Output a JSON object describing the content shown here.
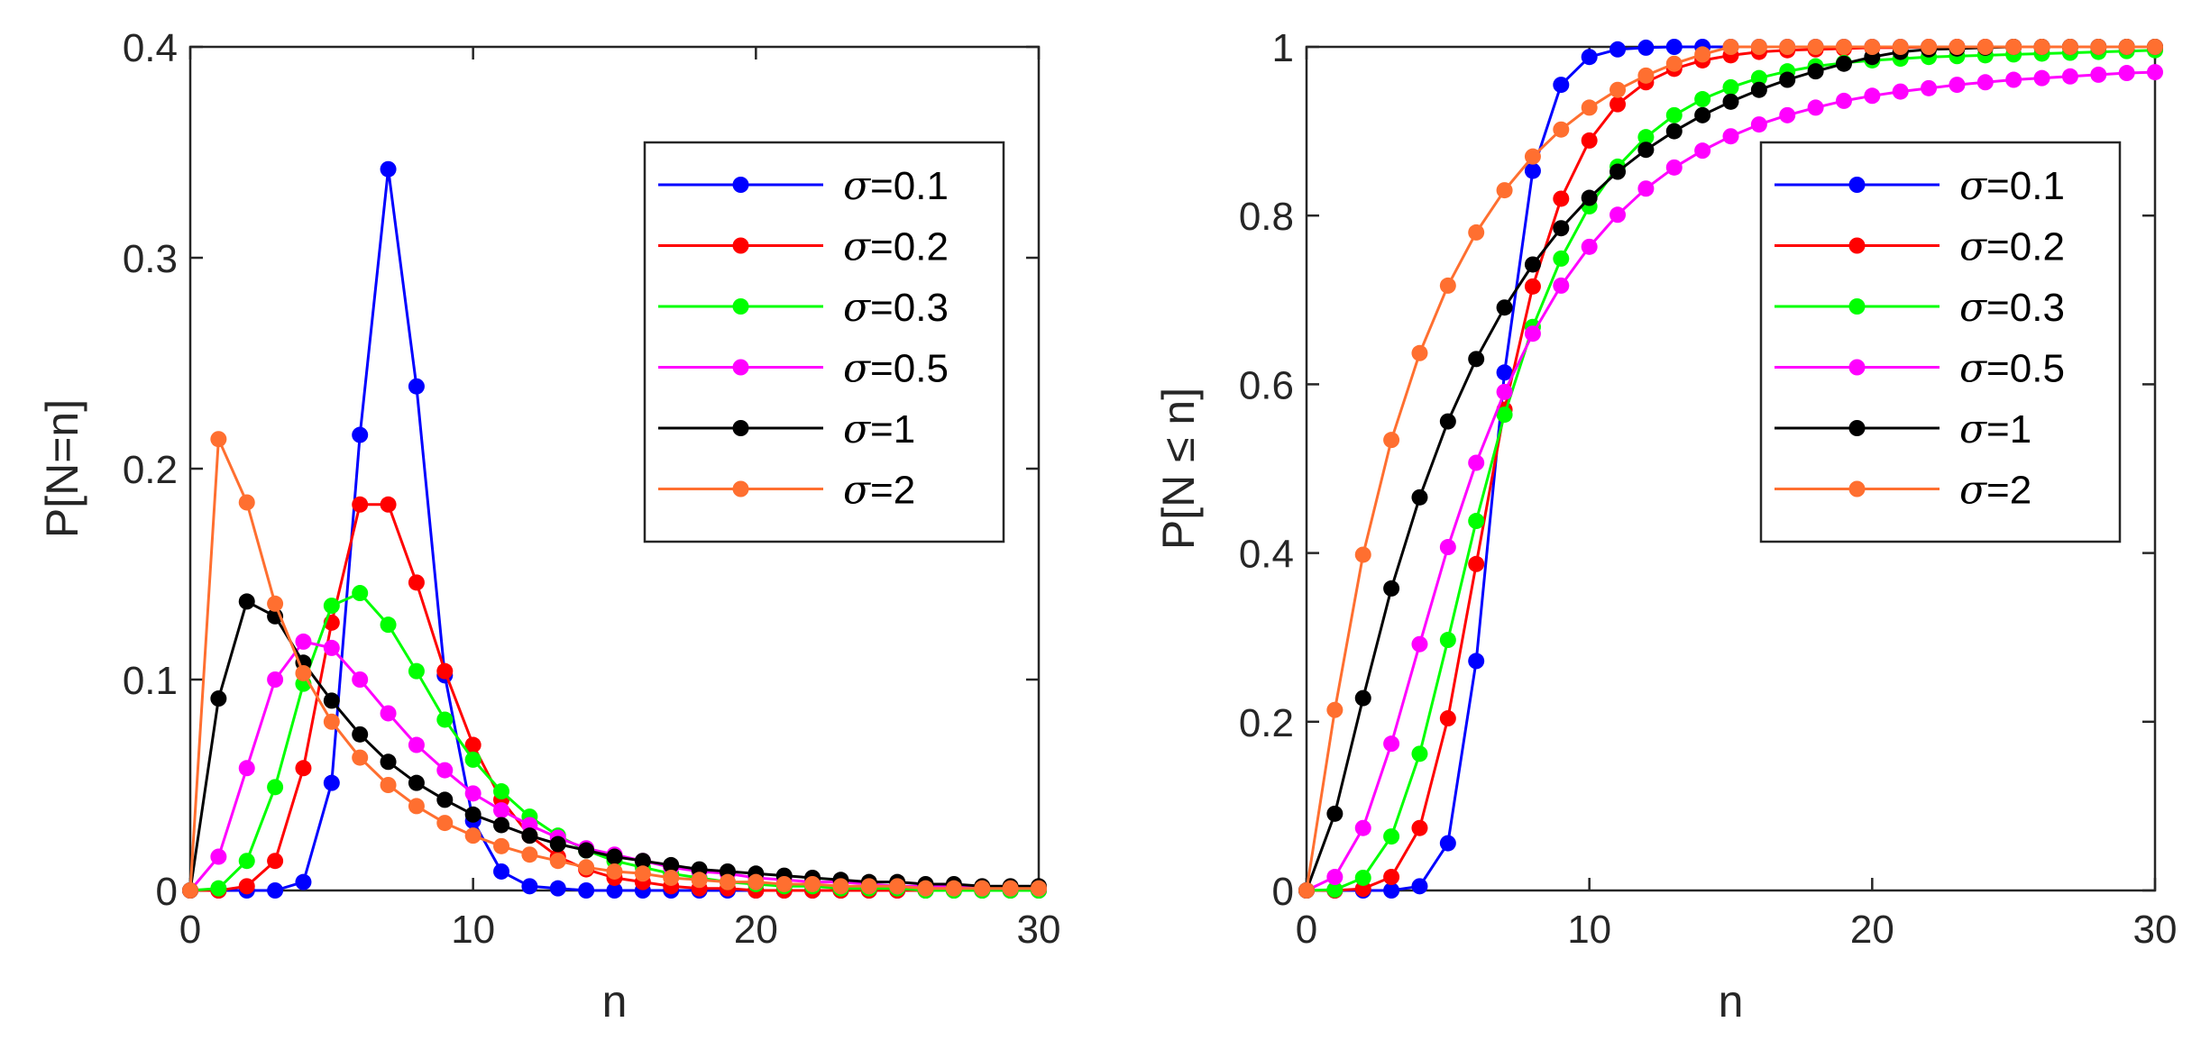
{
  "chart_data": [
    {
      "type": "line",
      "title": "",
      "xlabel": "n",
      "ylabel": "P[N=n]",
      "xlim": [
        0,
        30
      ],
      "ylim": [
        0,
        0.4
      ],
      "xticks": [
        0,
        10,
        20,
        30
      ],
      "yticks": [
        0,
        0.1,
        0.2,
        0.3,
        0.4
      ],
      "xtick_labels": [
        "0",
        "10",
        "20",
        "30"
      ],
      "ytick_labels": [
        "0",
        "0.1",
        "0.2",
        "0.3",
        "0.4"
      ],
      "grid": false,
      "legend_position": "top-right",
      "x": [
        0,
        1,
        2,
        3,
        4,
        5,
        6,
        7,
        8,
        9,
        10,
        11,
        12,
        13,
        14,
        15,
        16,
        17,
        18,
        19,
        20,
        21,
        22,
        23,
        24,
        25,
        26,
        27,
        28,
        29,
        30
      ],
      "series": [
        {
          "name": "σ=0.1",
          "symbol": "σ",
          "value_text": "=0.1",
          "color": "#0000ff",
          "values": [
            0,
            0,
            0,
            0,
            0.004,
            0.051,
            0.216,
            0.342,
            0.239,
            0.102,
            0.033,
            0.009,
            0.002,
            0.001,
            0,
            0,
            0,
            0,
            0,
            0,
            0,
            0,
            0,
            0,
            0,
            0,
            0,
            0,
            0,
            0,
            0
          ]
        },
        {
          "name": "σ=0.2",
          "symbol": "σ",
          "value_text": "=0.2",
          "color": "#ff0000",
          "values": [
            0,
            0,
            0.002,
            0.014,
            0.058,
            0.127,
            0.183,
            0.183,
            0.146,
            0.104,
            0.069,
            0.043,
            0.026,
            0.016,
            0.01,
            0.006,
            0.004,
            0.002,
            0.001,
            0.001,
            0,
            0,
            0,
            0,
            0,
            0,
            0,
            0,
            0,
            0,
            0
          ]
        },
        {
          "name": "σ=0.3",
          "symbol": "σ",
          "value_text": "=0.3",
          "color": "#00ff00",
          "values": [
            0,
            0.001,
            0.014,
            0.049,
            0.098,
            0.135,
            0.141,
            0.126,
            0.104,
            0.081,
            0.062,
            0.047,
            0.035,
            0.026,
            0.019,
            0.014,
            0.011,
            0.008,
            0.006,
            0.004,
            0.003,
            0.002,
            0.002,
            0.001,
            0.001,
            0.001,
            0,
            0,
            0,
            0,
            0
          ]
        },
        {
          "name": "σ=0.5",
          "symbol": "σ",
          "value_text": "=0.5",
          "color": "#ff00ff",
          "values": [
            0,
            0.016,
            0.058,
            0.1,
            0.118,
            0.115,
            0.1,
            0.084,
            0.069,
            0.057,
            0.046,
            0.038,
            0.031,
            0.025,
            0.02,
            0.017,
            0.014,
            0.011,
            0.009,
            0.008,
            0.006,
            0.005,
            0.004,
            0.004,
            0.003,
            0.002,
            0.002,
            0.002,
            0.001,
            0.001,
            0.001
          ]
        },
        {
          "name": "σ=1",
          "symbol": "σ",
          "value_text": "=1",
          "color": "#000000",
          "values": [
            0,
            0.091,
            0.137,
            0.13,
            0.108,
            0.09,
            0.074,
            0.061,
            0.051,
            0.043,
            0.036,
            0.031,
            0.026,
            0.022,
            0.019,
            0.016,
            0.014,
            0.012,
            0.01,
            0.009,
            0.008,
            0.007,
            0.006,
            0.005,
            0.004,
            0.004,
            0.003,
            0.003,
            0.002,
            0.002,
            0.002
          ]
        },
        {
          "name": "σ=2",
          "symbol": "σ",
          "value_text": "=2",
          "color": "#ff6f30",
          "values": [
            0,
            0.214,
            0.184,
            0.136,
            0.103,
            0.08,
            0.063,
            0.05,
            0.04,
            0.032,
            0.026,
            0.021,
            0.017,
            0.014,
            0.011,
            0.009,
            0.008,
            0.006,
            0.005,
            0.004,
            0.004,
            0.003,
            0.003,
            0.002,
            0.002,
            0.002,
            0.001,
            0.001,
            0.001,
            0.001,
            0.001
          ]
        }
      ]
    },
    {
      "type": "line",
      "title": "",
      "xlabel": "n",
      "ylabel": "P[N ≤ n]",
      "xlim": [
        0,
        30
      ],
      "ylim": [
        0,
        1
      ],
      "xticks": [
        0,
        10,
        20,
        30
      ],
      "yticks": [
        0,
        0.2,
        0.4,
        0.6,
        0.8,
        1
      ],
      "xtick_labels": [
        "0",
        "10",
        "20",
        "30"
      ],
      "ytick_labels": [
        "0",
        "0.2",
        "0.4",
        "0.6",
        "0.8",
        "1"
      ],
      "grid": false,
      "legend_position": "right",
      "x": [
        0,
        1,
        2,
        3,
        4,
        5,
        6,
        7,
        8,
        9,
        10,
        11,
        12,
        13,
        14,
        15,
        16,
        17,
        18,
        19,
        20,
        21,
        22,
        23,
        24,
        25,
        26,
        27,
        28,
        29,
        30
      ],
      "series": [
        {
          "name": "σ=0.1",
          "symbol": "σ",
          "value_text": "=0.1",
          "color": "#0000ff",
          "values": [
            0,
            0,
            0,
            0,
            0.005,
            0.056,
            0.272,
            0.614,
            0.853,
            0.955,
            0.988,
            0.997,
            0.999,
            1,
            1,
            1,
            1,
            1,
            1,
            1,
            1,
            1,
            1,
            1,
            1,
            1,
            1,
            1,
            1,
            1,
            1
          ]
        },
        {
          "name": "σ=0.2",
          "symbol": "σ",
          "value_text": "=0.2",
          "color": "#ff0000",
          "values": [
            0,
            0,
            0.002,
            0.016,
            0.074,
            0.204,
            0.387,
            0.57,
            0.716,
            0.82,
            0.889,
            0.932,
            0.958,
            0.974,
            0.984,
            0.99,
            0.994,
            0.996,
            0.997,
            0.998,
            0.999,
            0.999,
            1,
            1,
            1,
            1,
            1,
            1,
            1,
            1,
            1
          ]
        },
        {
          "name": "σ=0.3",
          "symbol": "σ",
          "value_text": "=0.3",
          "color": "#00ff00",
          "values": [
            0,
            0.001,
            0.015,
            0.064,
            0.162,
            0.297,
            0.438,
            0.564,
            0.668,
            0.749,
            0.811,
            0.858,
            0.893,
            0.919,
            0.938,
            0.952,
            0.963,
            0.971,
            0.977,
            0.981,
            0.984,
            0.986,
            0.988,
            0.989,
            0.99,
            0.991,
            0.992,
            0.993,
            0.994,
            0.995,
            0.996
          ]
        },
        {
          "name": "σ=0.5",
          "symbol": "σ",
          "value_text": "=0.5",
          "color": "#ff00ff",
          "values": [
            0,
            0.016,
            0.074,
            0.174,
            0.292,
            0.407,
            0.507,
            0.591,
            0.66,
            0.717,
            0.763,
            0.801,
            0.832,
            0.857,
            0.877,
            0.894,
            0.908,
            0.919,
            0.928,
            0.936,
            0.942,
            0.947,
            0.951,
            0.955,
            0.958,
            0.961,
            0.963,
            0.965,
            0.967,
            0.969,
            0.97
          ]
        },
        {
          "name": "σ=1",
          "symbol": "σ",
          "value_text": "=1",
          "color": "#000000",
          "values": [
            0,
            0.091,
            0.228,
            0.358,
            0.466,
            0.556,
            0.63,
            0.691,
            0.742,
            0.785,
            0.821,
            0.852,
            0.878,
            0.9,
            0.919,
            0.935,
            0.949,
            0.961,
            0.971,
            0.98,
            0.988,
            0.994,
            0.997,
            0.998,
            0.999,
            1,
            1,
            1,
            1,
            1,
            1
          ]
        },
        {
          "name": "σ=2",
          "symbol": "σ",
          "value_text": "=2",
          "color": "#ff6f30",
          "values": [
            0,
            0.214,
            0.398,
            0.534,
            0.637,
            0.717,
            0.78,
            0.83,
            0.87,
            0.902,
            0.928,
            0.949,
            0.966,
            0.98,
            0.991,
            1,
            1,
            1,
            1,
            1,
            1,
            1,
            1,
            1,
            1,
            1,
            1,
            1,
            1,
            1,
            1
          ]
        }
      ]
    }
  ]
}
